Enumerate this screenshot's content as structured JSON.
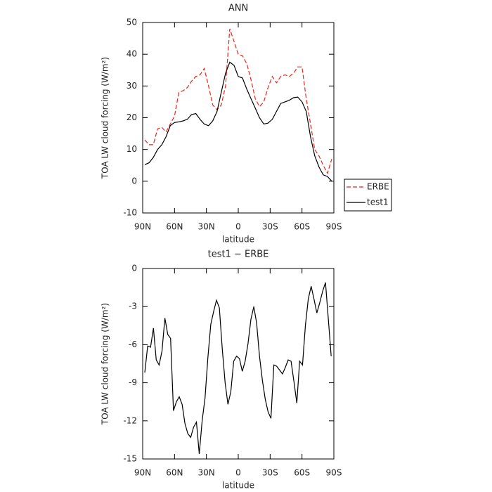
{
  "chart_data": [
    {
      "type": "line",
      "title": "ANN",
      "xlabel": "latitude",
      "ylabel": "TOA LW cloud forcing (W/m²)",
      "x": [
        88,
        84,
        80,
        76,
        72,
        68,
        64,
        60,
        56,
        52,
        48,
        44,
        40,
        36,
        32,
        28,
        24,
        20,
        16,
        12,
        8,
        4,
        0,
        -4,
        -8,
        -12,
        -16,
        -20,
        -24,
        -28,
        -32,
        -36,
        -40,
        -44,
        -48,
        -52,
        -56,
        -60,
        -64,
        -68,
        -72,
        -76,
        -80,
        -84,
        -88
      ],
      "series": [
        {
          "name": "ERBE",
          "color": "#e8261d",
          "dash": true,
          "values": [
            13,
            11.5,
            11.5,
            16.5,
            17,
            15.5,
            18,
            20.5,
            28,
            28.5,
            29.5,
            31.5,
            33,
            33.5,
            35.5,
            30,
            24,
            22.5,
            24,
            30,
            48,
            44,
            40,
            39.5,
            37,
            32,
            26,
            23.5,
            25,
            29.5,
            33,
            31,
            33,
            33.5,
            33,
            34,
            36,
            36,
            26,
            18,
            10,
            8,
            5,
            2.5,
            7
          ]
        },
        {
          "name": "test1",
          "color": "#000000",
          "dash": false,
          "values": [
            5.2,
            5.8,
            7.5,
            10,
            11.5,
            14,
            17.5,
            18.5,
            18.7,
            19,
            19.5,
            21,
            21.3,
            19.5,
            18,
            17.5,
            19,
            22,
            28,
            34,
            37.5,
            36.5,
            33,
            32.5,
            29,
            26,
            23,
            20,
            18,
            18.3,
            19.5,
            22,
            24.5,
            25,
            25.5,
            26.3,
            26.5,
            25,
            22,
            14,
            8,
            4.5,
            2,
            1.5,
            0
          ]
        }
      ],
      "xlim": [
        90,
        -90
      ],
      "xticks": [
        {
          "value": 90,
          "label": "90N"
        },
        {
          "value": 60,
          "label": "60N"
        },
        {
          "value": 30,
          "label": "30N"
        },
        0,
        {
          "value": -30,
          "label": "30S"
        },
        {
          "value": -60,
          "label": "60S"
        },
        {
          "value": -90,
          "label": "90S"
        }
      ],
      "ylim": [
        -10,
        50
      ],
      "yticks": [
        -10,
        0,
        10,
        20,
        30,
        40,
        50
      ],
      "legend": "outside-right"
    },
    {
      "type": "line",
      "title": "test1 − ERBE",
      "xlabel": "latitude",
      "ylabel": "TOA LW cloud forcing (W/m²)",
      "x": [
        88,
        85.3,
        82.6,
        79.9,
        77.2,
        74.5,
        71.8,
        69.1,
        66.4,
        63.7,
        61,
        58.3,
        55.6,
        52.9,
        50.2,
        47.5,
        44.8,
        42.1,
        39.4,
        36.7,
        34,
        31.3,
        28.6,
        25.9,
        23.2,
        20.5,
        17.8,
        15.1,
        12.4,
        9.7,
        7,
        4.3,
        1.6,
        -1.1,
        -3.8,
        -6.5,
        -9.2,
        -11.9,
        -14.6,
        -17.3,
        -20,
        -22.7,
        -25.4,
        -28.1,
        -30.8,
        -33.5,
        -36.2,
        -38.9,
        -41.6,
        -44.3,
        -47,
        -49.7,
        -52.4,
        -55.1,
        -57.8,
        -60.5,
        -63.2,
        -65.9,
        -68.6,
        -71.3,
        -74,
        -76.7,
        -79.4,
        -82.1,
        -87.5
      ],
      "series": [
        {
          "color": "#000000",
          "dash": false,
          "values": [
            -8.2,
            -6.1,
            -6.2,
            -4.7,
            -7.2,
            -7.6,
            -6.5,
            -3.9,
            -5.2,
            -5.5,
            -11.2,
            -10.5,
            -10.1,
            -10.7,
            -12.2,
            -13,
            -13.3,
            -12.5,
            -12.1,
            -14.6,
            -12,
            -10.2,
            -7,
            -4.4,
            -3.4,
            -2.5,
            -3.1,
            -6.3,
            -9,
            -10.7,
            -9.7,
            -7.3,
            -6.9,
            -7.1,
            -8.1,
            -7.3,
            -5.9,
            -4,
            -3,
            -4.3,
            -6.9,
            -8.8,
            -10.3,
            -11.3,
            -11.8,
            -7.6,
            -7.7,
            -8,
            -8.3,
            -7.8,
            -7.2,
            -7.3,
            -8.9,
            -10.6,
            -7.3,
            -7.6,
            -4.5,
            -2.4,
            -1.4,
            -2.4,
            -3.5,
            -2.7,
            -1.8,
            -1.1,
            -6.9
          ]
        }
      ],
      "xlim": [
        90,
        -90
      ],
      "xticks": [
        {
          "value": 90,
          "label": "90N"
        },
        {
          "value": 60,
          "label": "60N"
        },
        {
          "value": 30,
          "label": "30N"
        },
        0,
        {
          "value": -30,
          "label": "30S"
        },
        {
          "value": -60,
          "label": "60S"
        },
        {
          "value": -90,
          "label": "90S"
        }
      ],
      "ylim": [
        -15,
        0
      ],
      "yticks": [
        -15,
        -12,
        -9,
        -6,
        -3,
        0
      ]
    }
  ]
}
